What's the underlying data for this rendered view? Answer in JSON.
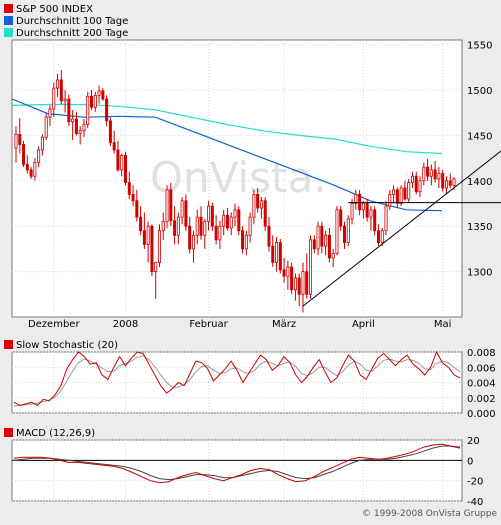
{
  "chart_data": [
    {
      "type": "candlestick",
      "legend": [
        {
          "label": "S&P 500 INDEX",
          "color": "#e00000"
        },
        {
          "label": "Durchschnitt 100 Tage",
          "color": "#0a64d8"
        },
        {
          "label": "Durchschnitt 200 Tage",
          "color": "#22e0c8"
        }
      ],
      "watermark": "OnVista.",
      "ylim": [
        1250,
        1555
      ],
      "y_ticks": [
        "1550",
        "1500",
        "1450",
        "1400",
        "1350",
        "1300"
      ],
      "x_tick_labels": [
        "Dezember",
        "2008",
        "Februar",
        "März",
        "April",
        "Mai"
      ],
      "period": {
        "start": "2007-11-19",
        "end": "2008-05-16"
      },
      "ohlc": [
        {
          "o": 1436,
          "h": 1460,
          "l": 1420,
          "c": 1451
        },
        {
          "o": 1451,
          "h": 1469,
          "l": 1430,
          "c": 1440
        },
        {
          "o": 1440,
          "h": 1444,
          "l": 1415,
          "c": 1418
        },
        {
          "o": 1418,
          "h": 1428,
          "l": 1408,
          "c": 1412
        },
        {
          "o": 1412,
          "h": 1415,
          "l": 1402,
          "c": 1405
        },
        {
          "o": 1405,
          "h": 1425,
          "l": 1400,
          "c": 1420
        },
        {
          "o": 1420,
          "h": 1438,
          "l": 1415,
          "c": 1434
        },
        {
          "o": 1434,
          "h": 1451,
          "l": 1428,
          "c": 1448
        },
        {
          "o": 1448,
          "h": 1474,
          "l": 1445,
          "c": 1470
        },
        {
          "o": 1470,
          "h": 1483,
          "l": 1460,
          "c": 1479
        },
        {
          "o": 1479,
          "h": 1508,
          "l": 1470,
          "c": 1502
        },
        {
          "o": 1502,
          "h": 1518,
          "l": 1492,
          "c": 1511
        },
        {
          "o": 1511,
          "h": 1522,
          "l": 1484,
          "c": 1488
        },
        {
          "o": 1488,
          "h": 1500,
          "l": 1475,
          "c": 1490
        },
        {
          "o": 1490,
          "h": 1495,
          "l": 1460,
          "c": 1465
        },
        {
          "o": 1465,
          "h": 1478,
          "l": 1445,
          "c": 1468
        },
        {
          "o": 1468,
          "h": 1476,
          "l": 1450,
          "c": 1452
        },
        {
          "o": 1452,
          "h": 1460,
          "l": 1440,
          "c": 1455
        },
        {
          "o": 1455,
          "h": 1468,
          "l": 1448,
          "c": 1462
        },
        {
          "o": 1462,
          "h": 1498,
          "l": 1458,
          "c": 1493
        },
        {
          "o": 1493,
          "h": 1500,
          "l": 1478,
          "c": 1481
        },
        {
          "o": 1481,
          "h": 1498,
          "l": 1476,
          "c": 1494
        },
        {
          "o": 1494,
          "h": 1505,
          "l": 1485,
          "c": 1499
        },
        {
          "o": 1499,
          "h": 1502,
          "l": 1488,
          "c": 1490
        },
        {
          "o": 1490,
          "h": 1494,
          "l": 1460,
          "c": 1466
        },
        {
          "o": 1466,
          "h": 1470,
          "l": 1438,
          "c": 1442
        },
        {
          "o": 1442,
          "h": 1455,
          "l": 1430,
          "c": 1434
        },
        {
          "o": 1434,
          "h": 1444,
          "l": 1410,
          "c": 1412
        },
        {
          "o": 1412,
          "h": 1430,
          "l": 1405,
          "c": 1428
        },
        {
          "o": 1428,
          "h": 1432,
          "l": 1395,
          "c": 1398
        },
        {
          "o": 1398,
          "h": 1410,
          "l": 1380,
          "c": 1385
        },
        {
          "o": 1385,
          "h": 1395,
          "l": 1372,
          "c": 1378
        },
        {
          "o": 1378,
          "h": 1390,
          "l": 1355,
          "c": 1360
        },
        {
          "o": 1360,
          "h": 1372,
          "l": 1340,
          "c": 1345
        },
        {
          "o": 1345,
          "h": 1365,
          "l": 1325,
          "c": 1330
        },
        {
          "o": 1330,
          "h": 1355,
          "l": 1310,
          "c": 1350
        },
        {
          "o": 1350,
          "h": 1352,
          "l": 1295,
          "c": 1300
        },
        {
          "o": 1300,
          "h": 1310,
          "l": 1270,
          "c": 1310
        },
        {
          "o": 1310,
          "h": 1352,
          "l": 1305,
          "c": 1345
        },
        {
          "o": 1345,
          "h": 1365,
          "l": 1335,
          "c": 1355
        },
        {
          "o": 1355,
          "h": 1395,
          "l": 1348,
          "c": 1390
        },
        {
          "o": 1390,
          "h": 1398,
          "l": 1350,
          "c": 1356
        },
        {
          "o": 1356,
          "h": 1372,
          "l": 1330,
          "c": 1340
        },
        {
          "o": 1340,
          "h": 1365,
          "l": 1330,
          "c": 1360
        },
        {
          "o": 1360,
          "h": 1382,
          "l": 1352,
          "c": 1378
        },
        {
          "o": 1378,
          "h": 1385,
          "l": 1345,
          "c": 1350
        },
        {
          "o": 1350,
          "h": 1360,
          "l": 1320,
          "c": 1325
        },
        {
          "o": 1325,
          "h": 1345,
          "l": 1310,
          "c": 1340
        },
        {
          "o": 1340,
          "h": 1368,
          "l": 1330,
          "c": 1360
        },
        {
          "o": 1360,
          "h": 1372,
          "l": 1335,
          "c": 1340
        },
        {
          "o": 1340,
          "h": 1358,
          "l": 1325,
          "c": 1355
        },
        {
          "o": 1355,
          "h": 1378,
          "l": 1345,
          "c": 1372
        },
        {
          "o": 1372,
          "h": 1376,
          "l": 1345,
          "c": 1350
        },
        {
          "o": 1350,
          "h": 1362,
          "l": 1330,
          "c": 1335
        },
        {
          "o": 1335,
          "h": 1356,
          "l": 1325,
          "c": 1350
        },
        {
          "o": 1350,
          "h": 1368,
          "l": 1340,
          "c": 1362
        },
        {
          "o": 1362,
          "h": 1370,
          "l": 1345,
          "c": 1348
        },
        {
          "o": 1348,
          "h": 1365,
          "l": 1340,
          "c": 1360
        },
        {
          "o": 1360,
          "h": 1375,
          "l": 1350,
          "c": 1368
        },
        {
          "o": 1368,
          "h": 1372,
          "l": 1340,
          "c": 1345
        },
        {
          "o": 1345,
          "h": 1350,
          "l": 1320,
          "c": 1325
        },
        {
          "o": 1325,
          "h": 1345,
          "l": 1318,
          "c": 1340
        },
        {
          "o": 1340,
          "h": 1365,
          "l": 1332,
          "c": 1360
        },
        {
          "o": 1360,
          "h": 1390,
          "l": 1352,
          "c": 1385
        },
        {
          "o": 1385,
          "h": 1392,
          "l": 1365,
          "c": 1370
        },
        {
          "o": 1370,
          "h": 1382,
          "l": 1358,
          "c": 1378
        },
        {
          "o": 1378,
          "h": 1382,
          "l": 1345,
          "c": 1350
        },
        {
          "o": 1350,
          "h": 1360,
          "l": 1322,
          "c": 1328
        },
        {
          "o": 1328,
          "h": 1340,
          "l": 1305,
          "c": 1310
        },
        {
          "o": 1310,
          "h": 1338,
          "l": 1300,
          "c": 1332
        },
        {
          "o": 1332,
          "h": 1336,
          "l": 1298,
          "c": 1302
        },
        {
          "o": 1302,
          "h": 1315,
          "l": 1288,
          "c": 1295
        },
        {
          "o": 1295,
          "h": 1312,
          "l": 1280,
          "c": 1305
        },
        {
          "o": 1305,
          "h": 1310,
          "l": 1275,
          "c": 1280
        },
        {
          "o": 1280,
          "h": 1298,
          "l": 1268,
          "c": 1293
        },
        {
          "o": 1293,
          "h": 1298,
          "l": 1262,
          "c": 1275
        },
        {
          "o": 1275,
          "h": 1310,
          "l": 1255,
          "c": 1300
        },
        {
          "o": 1300,
          "h": 1320,
          "l": 1270,
          "c": 1275
        },
        {
          "o": 1275,
          "h": 1340,
          "l": 1270,
          "c": 1335
        },
        {
          "o": 1335,
          "h": 1340,
          "l": 1320,
          "c": 1325
        },
        {
          "o": 1325,
          "h": 1355,
          "l": 1318,
          "c": 1350
        },
        {
          "o": 1350,
          "h": 1355,
          "l": 1320,
          "c": 1328
        },
        {
          "o": 1328,
          "h": 1345,
          "l": 1318,
          "c": 1340
        },
        {
          "o": 1340,
          "h": 1348,
          "l": 1310,
          "c": 1315
        },
        {
          "o": 1315,
          "h": 1325,
          "l": 1305,
          "c": 1320
        },
        {
          "o": 1320,
          "h": 1372,
          "l": 1318,
          "c": 1368
        },
        {
          "o": 1368,
          "h": 1372,
          "l": 1345,
          "c": 1350
        },
        {
          "o": 1350,
          "h": 1355,
          "l": 1325,
          "c": 1332
        },
        {
          "o": 1332,
          "h": 1362,
          "l": 1328,
          "c": 1358
        },
        {
          "o": 1358,
          "h": 1380,
          "l": 1352,
          "c": 1375
        },
        {
          "o": 1375,
          "h": 1390,
          "l": 1368,
          "c": 1385
        },
        {
          "o": 1385,
          "h": 1390,
          "l": 1362,
          "c": 1368
        },
        {
          "o": 1368,
          "h": 1378,
          "l": 1358,
          "c": 1375
        },
        {
          "o": 1375,
          "h": 1380,
          "l": 1355,
          "c": 1360
        },
        {
          "o": 1360,
          "h": 1372,
          "l": 1345,
          "c": 1368
        },
        {
          "o": 1368,
          "h": 1372,
          "l": 1340,
          "c": 1345
        },
        {
          "o": 1345,
          "h": 1352,
          "l": 1328,
          "c": 1332
        },
        {
          "o": 1332,
          "h": 1348,
          "l": 1328,
          "c": 1345
        },
        {
          "o": 1345,
          "h": 1378,
          "l": 1340,
          "c": 1372
        },
        {
          "o": 1372,
          "h": 1390,
          "l": 1368,
          "c": 1385
        },
        {
          "o": 1385,
          "h": 1395,
          "l": 1375,
          "c": 1390
        },
        {
          "o": 1390,
          "h": 1393,
          "l": 1370,
          "c": 1375
        },
        {
          "o": 1375,
          "h": 1395,
          "l": 1372,
          "c": 1392
        },
        {
          "o": 1392,
          "h": 1400,
          "l": 1378,
          "c": 1380
        },
        {
          "o": 1380,
          "h": 1402,
          "l": 1376,
          "c": 1398
        },
        {
          "o": 1398,
          "h": 1410,
          "l": 1392,
          "c": 1405
        },
        {
          "o": 1405,
          "h": 1410,
          "l": 1385,
          "c": 1388
        },
        {
          "o": 1388,
          "h": 1405,
          "l": 1382,
          "c": 1400
        },
        {
          "o": 1400,
          "h": 1420,
          "l": 1395,
          "c": 1415
        },
        {
          "o": 1415,
          "h": 1424,
          "l": 1400,
          "c": 1405
        },
        {
          "o": 1405,
          "h": 1418,
          "l": 1395,
          "c": 1412
        },
        {
          "o": 1412,
          "h": 1422,
          "l": 1398,
          "c": 1402
        },
        {
          "o": 1402,
          "h": 1415,
          "l": 1392,
          "c": 1408
        },
        {
          "o": 1408,
          "h": 1412,
          "l": 1388,
          "c": 1392
        },
        {
          "o": 1392,
          "h": 1405,
          "l": 1385,
          "c": 1400
        },
        {
          "o": 1400,
          "h": 1408,
          "l": 1392,
          "c": 1395
        },
        {
          "o": 1395,
          "h": 1404,
          "l": 1390,
          "c": 1402
        }
      ],
      "ma100": [
        1490,
        1474,
        1470,
        1471,
        1470,
        1455,
        1440,
        1425,
        1410,
        1395,
        1378,
        1368,
        1367
      ],
      "ma200": [
        1483,
        1484,
        1484,
        1482,
        1478,
        1470,
        1462,
        1455,
        1450,
        1446,
        1438,
        1432,
        1430
      ],
      "trendline": {
        "from": {
          "index": 76,
          "value": 1262
        },
        "to": {
          "index": 123,
          "value": 1415
        }
      },
      "resistance": 1376
    },
    {
      "type": "line",
      "label": "Slow Stochastic (20)",
      "ylim": [
        0,
        0.008
      ],
      "y_ticks": [
        "0.008",
        "0.006",
        "0.004",
        "0.002",
        "0.000"
      ],
      "series": [
        {
          "color": "#cc0000",
          "values": [
            0.0014,
            0.001,
            0.0012,
            0.0014,
            0.001,
            0.0018,
            0.0016,
            0.0024,
            0.0036,
            0.0058,
            0.007,
            0.008,
            0.0074,
            0.0064,
            0.0066,
            0.005,
            0.0044,
            0.006,
            0.0074,
            0.0062,
            0.0072,
            0.008,
            0.0078,
            0.0064,
            0.005,
            0.0036,
            0.0026,
            0.0032,
            0.004,
            0.0036,
            0.0052,
            0.0068,
            0.0066,
            0.0058,
            0.0042,
            0.005,
            0.0058,
            0.0068,
            0.0056,
            0.004,
            0.0052,
            0.0064,
            0.0076,
            0.007,
            0.0056,
            0.0062,
            0.0074,
            0.0066,
            0.005,
            0.004,
            0.0048,
            0.006,
            0.007,
            0.0054,
            0.004,
            0.0046,
            0.0062,
            0.0076,
            0.0068,
            0.005,
            0.0044,
            0.0058,
            0.0072,
            0.0078,
            0.007,
            0.0062,
            0.007,
            0.0076,
            0.0064,
            0.0058,
            0.005,
            0.006,
            0.008,
            0.0066,
            0.006,
            0.005,
            0.0046
          ]
        },
        {
          "color": "#9a9a9a",
          "values": [
            0.0009,
            0.001,
            0.0011,
            0.0012,
            0.0013,
            0.0015,
            0.0017,
            0.0021,
            0.0029,
            0.0042,
            0.0055,
            0.0066,
            0.0071,
            0.0068,
            0.0064,
            0.0059,
            0.0054,
            0.0055,
            0.0062,
            0.0065,
            0.0068,
            0.0073,
            0.0075,
            0.007,
            0.0061,
            0.005,
            0.004,
            0.0034,
            0.0034,
            0.0037,
            0.0044,
            0.0054,
            0.0061,
            0.0062,
            0.0056,
            0.0052,
            0.0053,
            0.0058,
            0.0059,
            0.0054,
            0.0052,
            0.0056,
            0.0064,
            0.0068,
            0.0065,
            0.0062,
            0.0065,
            0.0067,
            0.0061,
            0.0052,
            0.0049,
            0.0053,
            0.006,
            0.006,
            0.0054,
            0.0049,
            0.0054,
            0.0063,
            0.0068,
            0.0064,
            0.0056,
            0.0055,
            0.0062,
            0.0069,
            0.0071,
            0.0068,
            0.0067,
            0.007,
            0.0069,
            0.0065,
            0.0058,
            0.0057,
            0.0065,
            0.0068,
            0.0066,
            0.006,
            0.0054
          ]
        }
      ]
    },
    {
      "type": "line",
      "label": "MACD (12,26,9)",
      "ylim": [
        -40,
        20
      ],
      "y_ticks": [
        "20",
        "0",
        "-20",
        "-40"
      ],
      "series": [
        {
          "color": "#cc0000",
          "values": [
            2,
            3,
            3,
            3,
            2,
            0,
            -2,
            -2,
            -3,
            -4,
            -5,
            -6,
            -8,
            -12,
            -16,
            -20,
            -22,
            -21,
            -17,
            -14,
            -12,
            -15,
            -18,
            -20,
            -17,
            -14,
            -10,
            -8,
            -9,
            -14,
            -18,
            -21,
            -20,
            -16,
            -11,
            -7,
            -3,
            1,
            3,
            2,
            1,
            2,
            4,
            6,
            9,
            13,
            15,
            16,
            14,
            12
          ]
        },
        {
          "color": "#444444",
          "values": [
            0,
            1,
            2,
            2,
            2,
            1,
            0,
            -1,
            -2,
            -3,
            -4,
            -5,
            -6,
            -8,
            -11,
            -15,
            -18,
            -19,
            -18,
            -16,
            -14,
            -14,
            -15,
            -17,
            -17,
            -15,
            -13,
            -11,
            -10,
            -11,
            -14,
            -17,
            -18,
            -17,
            -14,
            -11,
            -7,
            -3,
            0,
            1,
            1,
            1,
            2,
            4,
            6,
            9,
            12,
            14,
            14,
            13
          ]
        }
      ]
    }
  ],
  "footer": {
    "copyright": "© 1999-2008 OnVista Gruppe"
  }
}
